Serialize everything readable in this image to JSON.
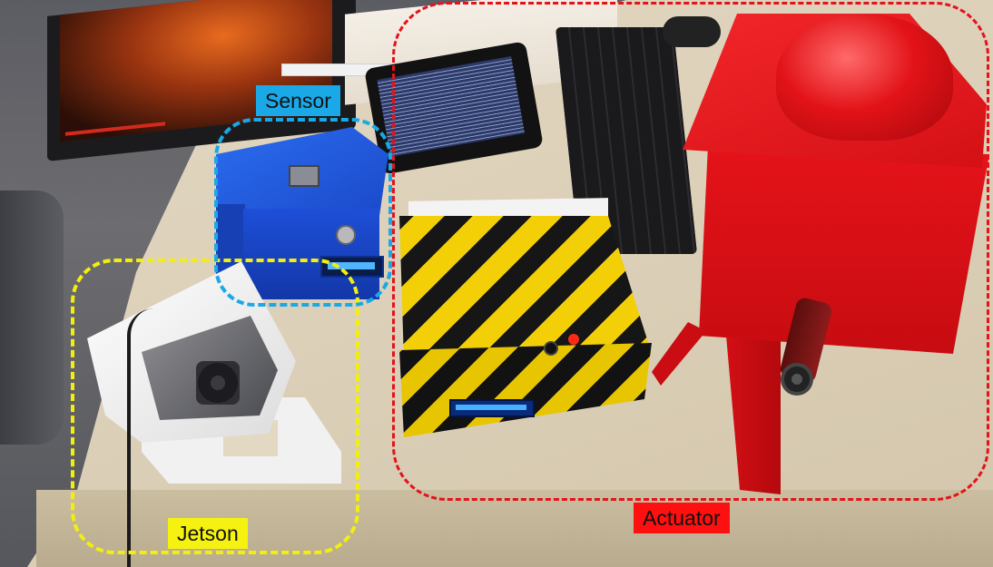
{
  "labels": {
    "sensor": "Sensor",
    "jetson": "Jetson",
    "actuator": "Actuator"
  },
  "colors": {
    "sensor_region": "#1aa8e6",
    "jetson_region": "#f2ef10",
    "actuator_region": "#e4121a"
  }
}
